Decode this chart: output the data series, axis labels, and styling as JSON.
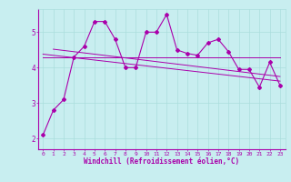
{
  "xlabel": "Windchill (Refroidissement éolien,°C)",
  "bg_color": "#c8eef0",
  "line_color": "#aa00aa",
  "grid_color": "#aadddd",
  "x_ticks": [
    0,
    1,
    2,
    3,
    4,
    5,
    6,
    7,
    8,
    9,
    10,
    11,
    12,
    13,
    14,
    15,
    16,
    17,
    18,
    19,
    20,
    21,
    22,
    23
  ],
  "y_ticks": [
    2,
    3,
    4,
    5
  ],
  "ylim": [
    1.7,
    5.65
  ],
  "xlim": [
    -0.5,
    23.5
  ],
  "series1_x": [
    0,
    1,
    2,
    3,
    4,
    5,
    6,
    7,
    8,
    9,
    10,
    11,
    12,
    13,
    14,
    15,
    16,
    17,
    18,
    19,
    20,
    21,
    22,
    23
  ],
  "series1_y": [
    2.1,
    2.8,
    3.1,
    4.3,
    4.6,
    5.3,
    5.3,
    4.8,
    4.0,
    4.0,
    5.0,
    5.0,
    5.5,
    4.5,
    4.4,
    4.35,
    4.7,
    4.8,
    4.45,
    3.95,
    3.95,
    3.45,
    4.15,
    3.5
  ],
  "trend1_x": [
    0,
    23
  ],
  "trend1_y": [
    4.28,
    4.28
  ],
  "trend2_x": [
    0,
    23
  ],
  "trend2_y": [
    4.38,
    3.62
  ],
  "trend3_x": [
    1,
    23
  ],
  "trend3_y": [
    4.52,
    3.75
  ]
}
